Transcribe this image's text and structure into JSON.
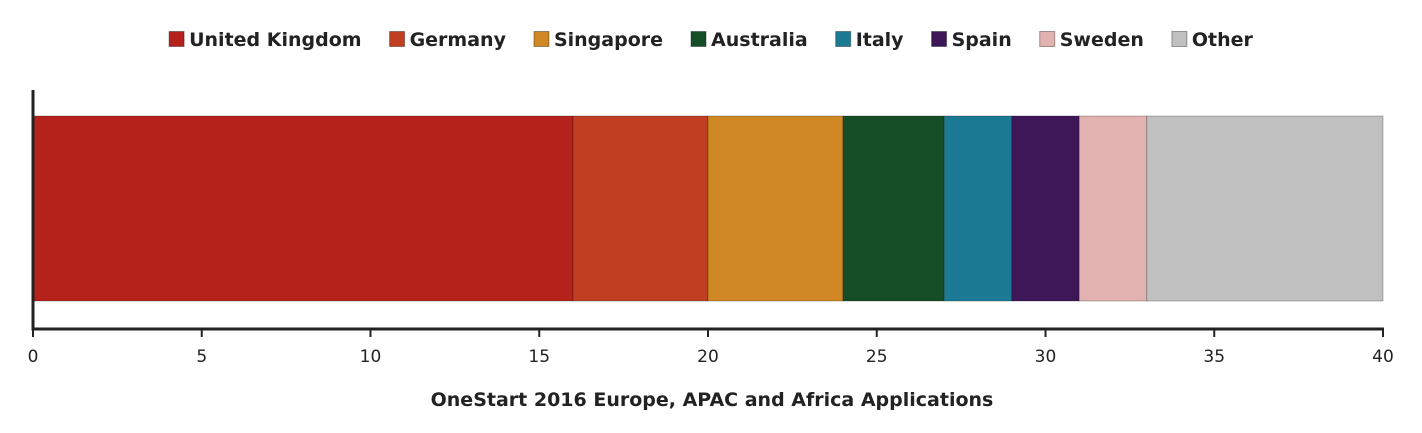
{
  "chart_data": {
    "type": "bar",
    "orientation": "horizontal",
    "stacked": true,
    "title": "",
    "xlabel": "OneStart 2016 Europe, APAC and Africa Applications",
    "ylabel": "",
    "xlim": [
      0,
      40
    ],
    "xticks": [
      0,
      5,
      10,
      15,
      20,
      25,
      30,
      35,
      40
    ],
    "grid": false,
    "legend_position": "top",
    "series": [
      {
        "name": "United Kingdom",
        "value": 16,
        "color": "#b5221c"
      },
      {
        "name": "Germany",
        "value": 4,
        "color": "#c13e22"
      },
      {
        "name": "Singapore",
        "value": 4,
        "color": "#d08824"
      },
      {
        "name": "Australia",
        "value": 3,
        "color": "#154e26"
      },
      {
        "name": "Italy",
        "value": 2,
        "color": "#1c7a95"
      },
      {
        "name": "Spain",
        "value": 2,
        "color": "#3d1757"
      },
      {
        "name": "Sweden",
        "value": 2,
        "color": "#e2b2b1"
      },
      {
        "name": "Other",
        "value": 7,
        "color": "#c0c0c0"
      }
    ]
  }
}
